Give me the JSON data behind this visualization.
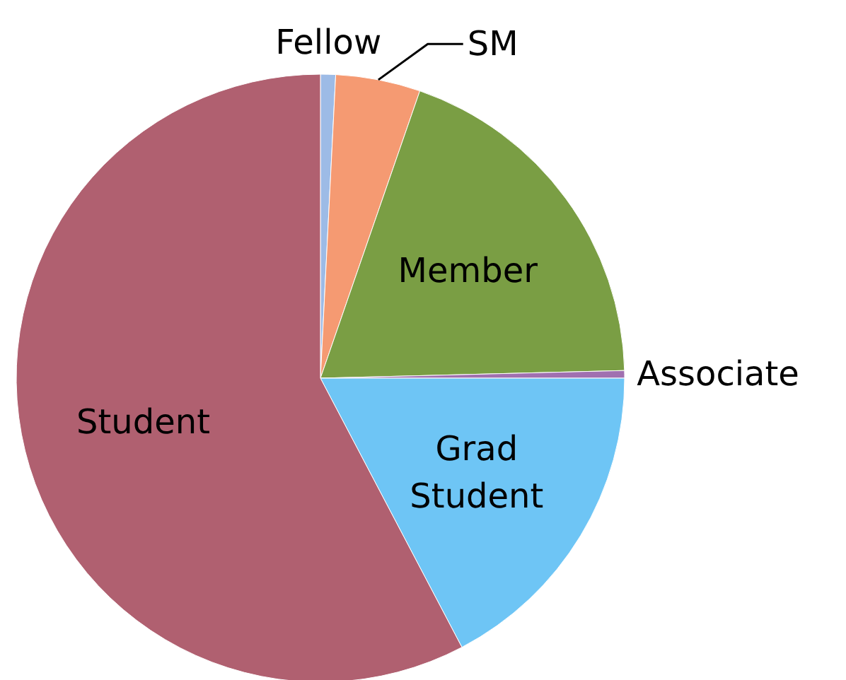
{
  "chart_data": {
    "type": "pie",
    "categories": [
      "Fellow",
      "SM",
      "Member",
      "Associate",
      "Grad Student",
      "Student"
    ],
    "values": [
      0.8,
      4.5,
      19.3,
      0.4,
      17.3,
      57.7
    ],
    "colors": [
      "#9dbbe6",
      "#f59a72",
      "#7a9e44",
      "#a070b0",
      "#6ec5f5",
      "#b06070"
    ]
  }
}
